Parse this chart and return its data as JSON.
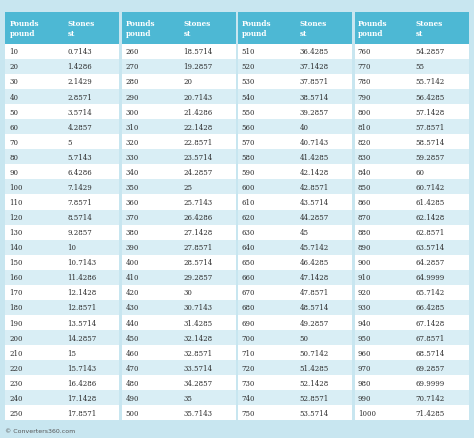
{
  "title": "© Converters360.com",
  "header_bg": "#4db8d4",
  "row_bg_even": "#d9eef5",
  "row_bg_odd": "#ffffff",
  "header_text_color": "#ffffff",
  "data_text_color": "#2c2c2c",
  "col_headers": [
    "Pounds\npound",
    "Stones\nst",
    "Pounds\npound",
    "Stones\nst",
    "Pounds\npound",
    "Stones\nst",
    "Pounds\npound",
    "Stones\nst"
  ],
  "pounds": [
    10,
    20,
    30,
    40,
    50,
    60,
    70,
    80,
    90,
    100,
    110,
    120,
    130,
    140,
    150,
    160,
    170,
    180,
    190,
    200,
    210,
    220,
    230,
    240,
    250,
    260,
    270,
    280,
    290,
    300,
    310,
    320,
    330,
    340,
    350,
    360,
    370,
    380,
    390,
    400,
    410,
    420,
    430,
    440,
    450,
    460,
    470,
    480,
    490,
    500,
    510,
    520,
    530,
    540,
    550,
    560,
    570,
    580,
    590,
    600,
    610,
    620,
    630,
    640,
    650,
    660,
    670,
    680,
    690,
    700,
    710,
    720,
    730,
    740,
    750,
    760,
    770,
    780,
    790,
    800,
    810,
    820,
    830,
    840,
    850,
    860,
    870,
    880,
    890,
    900,
    910,
    920,
    930,
    940,
    950,
    960,
    970,
    980,
    990,
    1000
  ],
  "stones": [
    "0.7143",
    "1.4286",
    "2.1429",
    "2.8571",
    "3.5714",
    "4.2857",
    "5",
    "5.7143",
    "6.4286",
    "7.1429",
    "7.8571",
    "8.5714",
    "9.2857",
    "10",
    "10.7143",
    "11.4286",
    "12.1428",
    "12.8571",
    "13.5714",
    "14.2857",
    "15",
    "15.7143",
    "16.4286",
    "17.1428",
    "17.8571",
    "18.5714",
    "19.2857",
    "20",
    "20.7143",
    "21.4286",
    "22.1428",
    "22.8571",
    "23.5714",
    "24.2857",
    "25",
    "25.7143",
    "26.4286",
    "27.1428",
    "27.8571",
    "28.5714",
    "29.2857",
    "30",
    "30.7143",
    "31.4285",
    "32.1428",
    "32.8571",
    "33.5714",
    "34.2857",
    "35",
    "35.7143",
    "36.4285",
    "37.1428",
    "37.8571",
    "38.5714",
    "39.2857",
    "40",
    "40.7143",
    "41.4285",
    "42.1428",
    "42.8571",
    "43.5714",
    "44.2857",
    "45",
    "45.7142",
    "46.4285",
    "47.1428",
    "47.8571",
    "48.5714",
    "49.2857",
    "50",
    "50.7142",
    "51.4285",
    "52.1428",
    "52.8571",
    "53.5714",
    "54.2857",
    "55",
    "55.7142",
    "56.4285",
    "57.1428",
    "57.8571",
    "58.5714",
    "59.2857",
    "60",
    "60.7142",
    "61.4285",
    "62.1428",
    "62.8571",
    "63.5714",
    "64.2857",
    "64.9999",
    "65.7142",
    "66.4285",
    "67.1428",
    "67.8571",
    "68.5714",
    "69.2857",
    "69.9999",
    "70.7142",
    "71.4285"
  ],
  "figsize": [
    4.74,
    4.39
  ],
  "dpi": 100
}
